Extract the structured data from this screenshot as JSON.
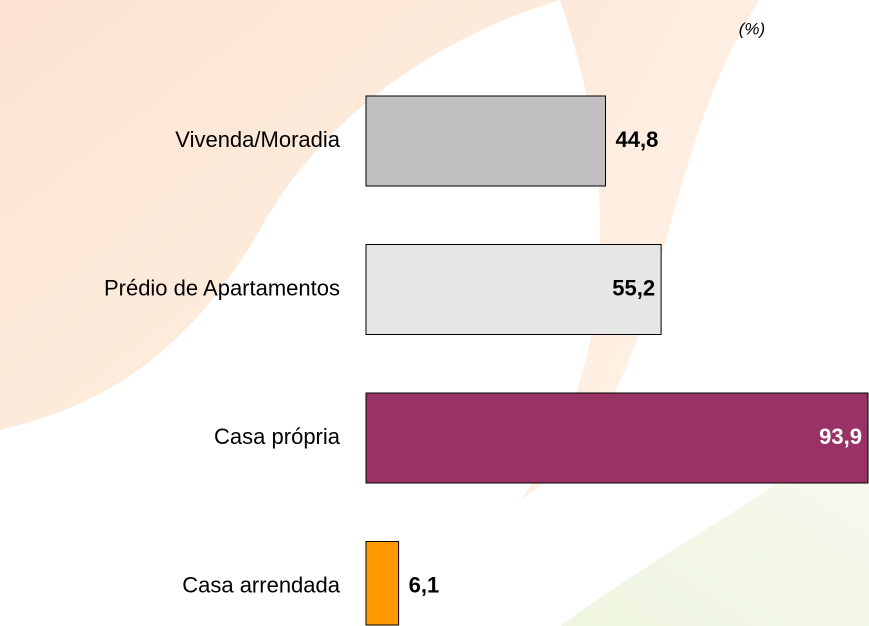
{
  "chart_data": {
    "type": "bar",
    "orientation": "horizontal",
    "unit_label": "(%)",
    "categories": [
      "Vivenda/Moradia",
      "Prédio de Apartamentos",
      "Casa própria",
      "Casa arrendada"
    ],
    "values": [
      44.8,
      55.2,
      93.9,
      6.1
    ],
    "value_labels": [
      "44,8",
      "55,2",
      "93,9",
      "6,1"
    ],
    "colors": [
      "#bfbfbf",
      "#e6e6e6",
      "#993366",
      "#ff9900"
    ]
  }
}
